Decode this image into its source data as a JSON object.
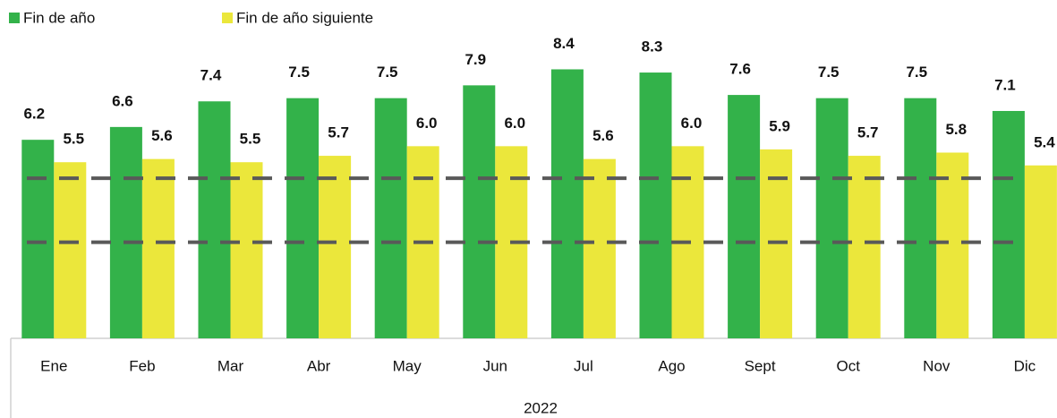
{
  "chart_data": {
    "type": "bar",
    "categories": [
      "Ene",
      "Feb",
      "Mar",
      "Abr",
      "May",
      "Jun",
      "Jul",
      "Ago",
      "Sept",
      "Oct",
      "Nov",
      "Dic"
    ],
    "group_label": "2022",
    "series": [
      {
        "name": "Fin de año",
        "color": "#33b24a",
        "values": [
          6.2,
          6.6,
          7.4,
          7.5,
          7.5,
          7.9,
          8.4,
          8.3,
          7.6,
          7.5,
          7.5,
          7.1
        ],
        "value_labels": [
          "6.2",
          "6.6",
          "7.4",
          "7.5",
          "7.5",
          "7.9",
          "8.4",
          "8.3",
          "7.6",
          "7.5",
          "7.5",
          "7.1"
        ]
      },
      {
        "name": "Fin de año siguiente",
        "color": "#ebe73b",
        "values": [
          5.5,
          5.6,
          5.5,
          5.7,
          6.0,
          6.0,
          5.6,
          6.0,
          5.9,
          5.7,
          5.8,
          5.4
        ],
        "value_labels": [
          "5.5",
          "5.6",
          "5.5",
          "5.7",
          "6.0",
          "6.0",
          "5.6",
          "6.0",
          "5.9",
          "5.7",
          "5.8",
          "5.4"
        ]
      }
    ],
    "reference_lines": [
      5,
      3
    ],
    "ylim": [
      0,
      9
    ],
    "legend": "top-left"
  }
}
